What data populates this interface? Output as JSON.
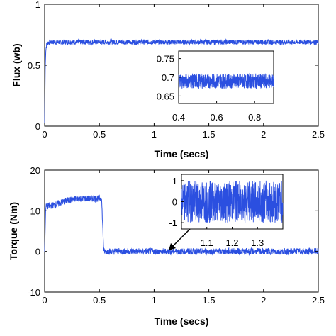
{
  "colors": {
    "trace": "#2b4fe0",
    "axis": "#000000",
    "background": "#ffffff"
  },
  "chart_data": [
    {
      "type": "line",
      "xlabel": "Time (secs)",
      "ylabel": "Flux (wb)",
      "xlim": [
        0,
        2.5
      ],
      "ylim": [
        0,
        1
      ],
      "xticks": [
        "0",
        "0.5",
        "1",
        "1.5",
        "2",
        "2.5"
      ],
      "yticks": [
        "0",
        "0.5",
        "1"
      ],
      "grid": false,
      "series": [
        {
          "x": [
            0,
            0.005,
            0.01,
            0.02,
            0.05,
            0.1,
            0.2,
            0.3,
            0.5,
            1.0,
            1.5,
            2.0,
            2.5
          ],
          "y": [
            0,
            0.45,
            0.62,
            0.68,
            0.69,
            0.69,
            0.69,
            0.69,
            0.69,
            0.69,
            0.69,
            0.69,
            0.69
          ],
          "ripple": 0.02
        }
      ],
      "inset": {
        "xlim": [
          0.4,
          0.9
        ],
        "ylim": [
          0.63,
          0.77
        ],
        "xticks": [
          "0.4",
          "0.6",
          "0.8"
        ],
        "yticks": [
          "0.75",
          "0.7",
          "0.65"
        ],
        "series": [
          {
            "x": [
              0.4,
              0.9
            ],
            "y": [
              0.69,
              0.69
            ],
            "ripple": 0.02
          }
        ]
      }
    },
    {
      "type": "line",
      "xlabel": "Time (secs)",
      "ylabel": "Torque (Nm)",
      "xlim": [
        0,
        2.5
      ],
      "ylim": [
        -10,
        20
      ],
      "xticks": [
        "0",
        "0.5",
        "1",
        "1.5",
        "2",
        "2.5"
      ],
      "yticks": [
        "-10",
        "0",
        "10",
        "20"
      ],
      "grid": false,
      "series": [
        {
          "x": [
            0,
            0.01,
            0.1,
            0.2,
            0.3,
            0.4,
            0.5,
            0.52,
            0.54,
            0.6,
            1.0,
            1.5,
            2.0,
            2.5
          ],
          "y": [
            0,
            11,
            11.5,
            12.5,
            13,
            13,
            13,
            13,
            0,
            0,
            0,
            0,
            0,
            0
          ],
          "ripple": 0.8
        }
      ],
      "inset": {
        "xlim": [
          1.0,
          1.4
        ],
        "ylim": [
          -1.3,
          1.3
        ],
        "xticks": [
          "1.1",
          "1.2",
          "1.3"
        ],
        "yticks": [
          "1",
          "0",
          "-1"
        ],
        "series": [
          {
            "x": [
              1.0,
              1.4
            ],
            "y": [
              0,
              0
            ],
            "ripple": 1.0
          }
        ]
      },
      "annotation": {
        "type": "arrow",
        "at_x": 1.15,
        "at_y": 0
      }
    }
  ]
}
